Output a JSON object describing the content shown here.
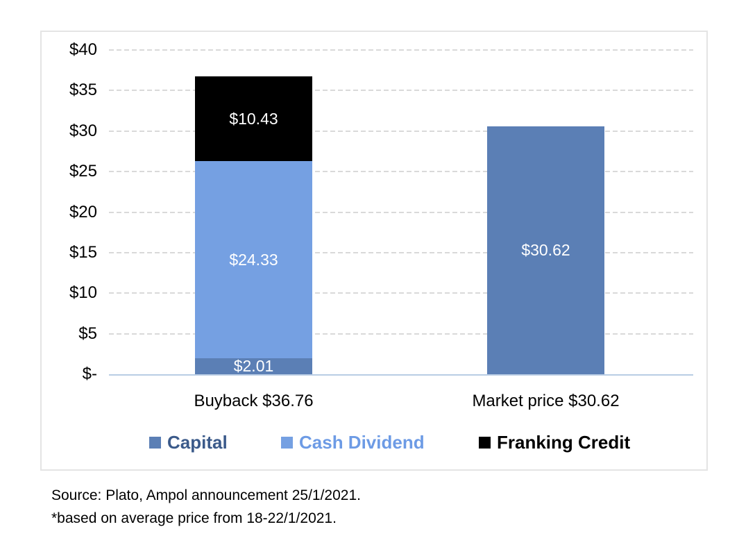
{
  "chart_data": {
    "type": "bar",
    "stacked": true,
    "title": "",
    "xlabel": "",
    "ylabel": "",
    "ylim": [
      0,
      40
    ],
    "grid": "horizontal dashed",
    "legend_position": "bottom",
    "categories": [
      "Buyback $36.76",
      "Market price $30.62"
    ],
    "series": [
      {
        "name": "Capital",
        "color": "#5b7fb5",
        "values": [
          2.01,
          30.62
        ]
      },
      {
        "name": "Cash Dividend",
        "color": "#75a0e2",
        "values": [
          24.33,
          0
        ]
      },
      {
        "name": "Franking Credit",
        "color": "#000000",
        "values": [
          10.43,
          0
        ]
      }
    ],
    "totals": {
      "buyback": 36.76,
      "market_price": 30.62
    },
    "data_labels": {
      "buyback_capital": "$2.01",
      "buyback_cash_dividend": "$24.33",
      "buyback_franking_credit": "$10.43",
      "market_price": "$30.62"
    },
    "y_ticks": [
      "$40",
      "$35",
      "$30",
      "$25",
      "$20",
      "$15",
      "$10",
      "$5",
      "$-"
    ],
    "axis_line_color": "#b9cde4",
    "gridline_color": "#d9d9d9",
    "legend_text_colors": {
      "capital": "#3b5a8a",
      "cash_dividend": "#6d9be5",
      "franking_credit": "#000000"
    }
  },
  "footnotes": {
    "line1": "Source: Plato, Ampol announcement 25/1/2021.",
    "line2": "*based on average price from 18-22/1/2021."
  }
}
